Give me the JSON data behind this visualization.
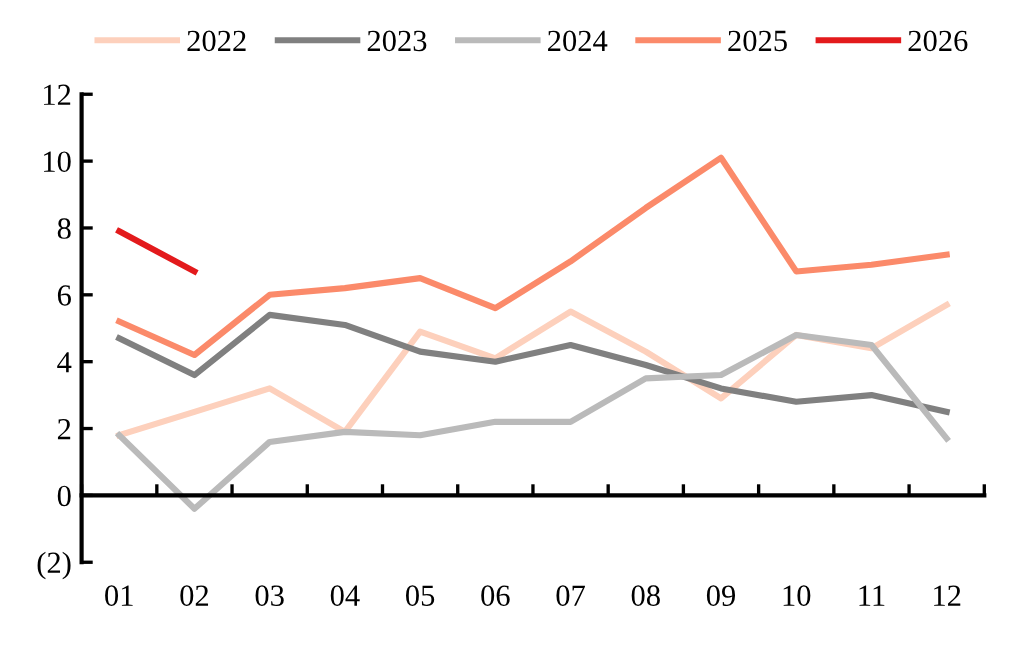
{
  "chart_data": {
    "type": "line",
    "categories": [
      "01",
      "02",
      "03",
      "04",
      "05",
      "06",
      "07",
      "08",
      "09",
      "10",
      "11",
      "12"
    ],
    "series": [
      {
        "name": "2022",
        "color": "#fdd0bc",
        "values": [
          1.8,
          2.5,
          3.2,
          1.9,
          4.9,
          4.1,
          5.5,
          4.3,
          2.9,
          4.8,
          4.4,
          5.7
        ]
      },
      {
        "name": "2023",
        "color": "#808080",
        "values": [
          4.7,
          3.6,
          5.4,
          5.1,
          4.3,
          4.0,
          4.5,
          3.9,
          3.2,
          2.8,
          3.0,
          2.5
        ]
      },
      {
        "name": "2024",
        "color": "#bababa",
        "values": [
          1.8,
          -0.4,
          1.6,
          1.9,
          1.8,
          2.2,
          2.2,
          3.5,
          3.6,
          4.8,
          4.5,
          1.7
        ]
      },
      {
        "name": "2025",
        "color": "#fb8a6a",
        "values": [
          5.2,
          4.2,
          6.0,
          6.2,
          6.5,
          5.6,
          7.0,
          8.6,
          10.1,
          6.7,
          6.9,
          7.2
        ]
      },
      {
        "name": "2026",
        "color": "#e31a1c",
        "values": [
          7.9,
          6.7,
          null,
          null,
          null,
          null,
          null,
          null,
          null,
          null,
          null,
          null
        ]
      }
    ],
    "ylim": [
      -2,
      12
    ],
    "yticks": [
      {
        "value": -2,
        "label": "(2)"
      },
      0,
      2,
      4,
      6,
      8,
      10,
      12
    ],
    "legend": "top",
    "marker": "none",
    "line_style": "solid"
  }
}
